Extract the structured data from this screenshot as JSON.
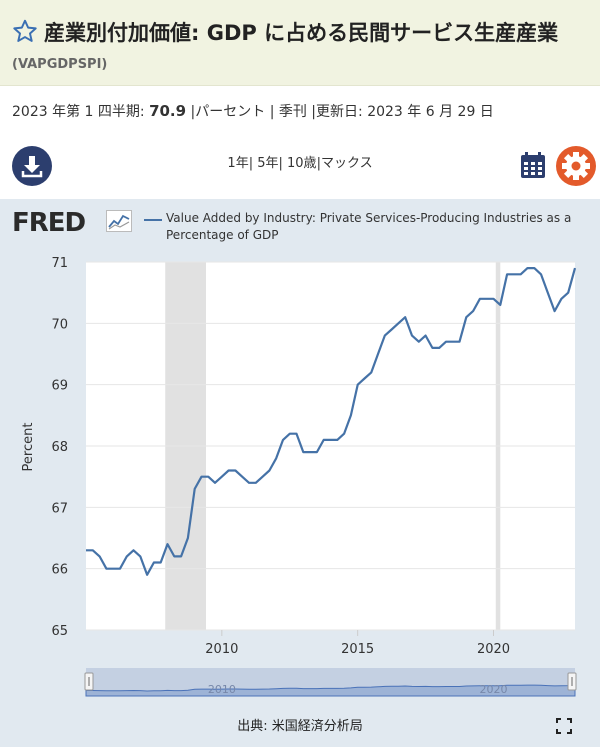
{
  "header": {
    "title": "産業別付加価値: GDP に占める民間サービス生産産業",
    "series_id": "(VAPGDPSPI)"
  },
  "meta": {
    "period_prefix": "2023 年第 1 四半期: ",
    "value": "70.9",
    "rest": " |パーセント | 季刊 |更新日: 2023 年 6 月 29 日"
  },
  "ranges": [
    "1年",
    "5年",
    "10歳",
    "マックス"
  ],
  "logo": "FRED",
  "source": "出典: 米国経済分析局",
  "colors": {
    "line": "#4572a7",
    "recession": "#e1e1e1",
    "plot_bg": "#ffffff",
    "chart_bg": "#e1e9f0",
    "header_bg": "#f1f3e1"
  },
  "icons": {
    "favorite": "star-icon",
    "download": "download-icon",
    "calendar": "calendar-icon",
    "settings": "gear-icon",
    "fullscreen": "fullscreen-icon"
  },
  "chart_data": {
    "type": "line",
    "series": [
      {
        "name": "Value Added by Industry: Private Services-Producing Industries as a Percentage of GDP",
        "x": [
          "2005-Q1",
          "2005-Q2",
          "2005-Q3",
          "2005-Q4",
          "2006-Q1",
          "2006-Q2",
          "2006-Q3",
          "2006-Q4",
          "2007-Q1",
          "2007-Q2",
          "2007-Q3",
          "2007-Q4",
          "2008-Q1",
          "2008-Q2",
          "2008-Q3",
          "2008-Q4",
          "2009-Q1",
          "2009-Q2",
          "2009-Q3",
          "2009-Q4",
          "2010-Q1",
          "2010-Q2",
          "2010-Q3",
          "2010-Q4",
          "2011-Q1",
          "2011-Q2",
          "2011-Q3",
          "2011-Q4",
          "2012-Q1",
          "2012-Q2",
          "2012-Q3",
          "2012-Q4",
          "2013-Q1",
          "2013-Q2",
          "2013-Q3",
          "2013-Q4",
          "2014-Q1",
          "2014-Q2",
          "2014-Q3",
          "2014-Q4",
          "2015-Q1",
          "2015-Q2",
          "2015-Q3",
          "2015-Q4",
          "2016-Q1",
          "2016-Q2",
          "2016-Q3",
          "2016-Q4",
          "2017-Q1",
          "2017-Q2",
          "2017-Q3",
          "2017-Q4",
          "2018-Q1",
          "2018-Q2",
          "2018-Q3",
          "2018-Q4",
          "2019-Q1",
          "2019-Q2",
          "2019-Q3",
          "2019-Q4",
          "2020-Q1",
          "2020-Q2",
          "2020-Q3",
          "2020-Q4",
          "2021-Q1",
          "2021-Q2",
          "2021-Q3",
          "2021-Q4",
          "2022-Q1",
          "2022-Q2",
          "2022-Q3",
          "2022-Q4",
          "2023-Q1"
        ],
        "values": [
          66.3,
          66.3,
          66.2,
          66.0,
          66.0,
          66.0,
          66.2,
          66.3,
          66.2,
          65.9,
          66.1,
          66.1,
          66.4,
          66.2,
          66.2,
          66.5,
          67.3,
          67.5,
          67.5,
          67.4,
          67.5,
          67.6,
          67.6,
          67.5,
          67.4,
          67.4,
          67.5,
          67.6,
          67.8,
          68.1,
          68.2,
          68.2,
          67.9,
          67.9,
          67.9,
          68.1,
          68.1,
          68.1,
          68.2,
          68.5,
          69.0,
          69.1,
          69.2,
          69.5,
          69.8,
          69.9,
          70.0,
          70.1,
          69.8,
          69.7,
          69.8,
          69.6,
          69.6,
          69.7,
          69.7,
          69.7,
          70.1,
          70.2,
          70.4,
          70.4,
          70.4,
          70.3,
          70.8,
          70.8,
          70.8,
          70.9,
          70.9,
          70.8,
          70.5,
          70.2,
          70.4,
          70.5,
          70.9
        ]
      }
    ],
    "ylabel": "Percent",
    "xlabel": "",
    "ylim": [
      65,
      71
    ],
    "yticks": [
      65,
      66,
      67,
      68,
      69,
      70,
      71
    ],
    "xticks": [
      2010,
      2015,
      2020
    ],
    "xlim": [
      "2005-Q1",
      "2023-Q1"
    ],
    "recessions": [
      [
        "2007-12",
        "2009-06"
      ],
      [
        "2020-02",
        "2020-04"
      ]
    ],
    "navigator_labels": [
      "2010",
      "2020"
    ],
    "grid": true
  }
}
